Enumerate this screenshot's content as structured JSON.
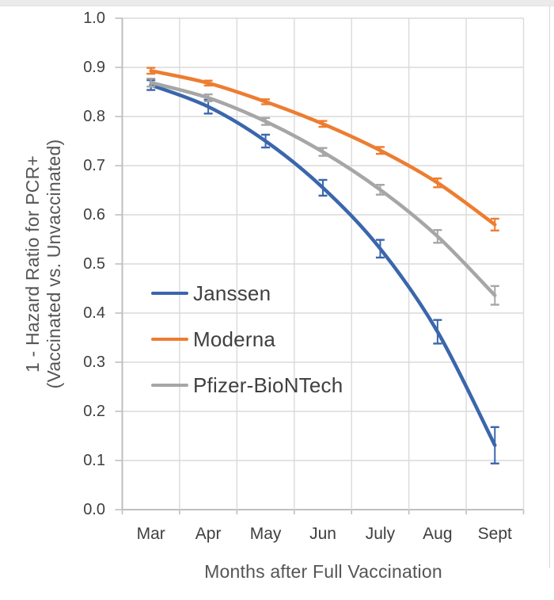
{
  "chart_data": {
    "type": "line",
    "title": "",
    "categories": [
      "Mar",
      "Apr",
      "May",
      "Jun",
      "July",
      "Aug",
      "Sept"
    ],
    "xlabel": "Months after Full Vaccination",
    "ylabel_line1": "1 - Hazard Ratio for PCR+",
    "ylabel_line2": "(Vaccinated vs. Unvaccinated)",
    "ylim": [
      0.0,
      1.0
    ],
    "ytick_step": 0.1,
    "ytick_labels": [
      "0.0",
      "0.1",
      "0.2",
      "0.3",
      "0.4",
      "0.5",
      "0.6",
      "0.7",
      "0.8",
      "0.9",
      "1.0"
    ],
    "grid": true,
    "line_style": "smooth",
    "error_bars": true,
    "legend_position": "inside-middle-left",
    "series": [
      {
        "name": "Janssen",
        "color": "#3A66AC",
        "values": [
          0.864,
          0.82,
          0.75,
          0.655,
          0.531,
          0.362,
          0.131
        ],
        "errors": [
          0.01,
          0.014,
          0.013,
          0.016,
          0.018,
          0.024,
          0.037
        ]
      },
      {
        "name": "Moderna",
        "color": "#ED7D31",
        "values": [
          0.893,
          0.868,
          0.83,
          0.785,
          0.731,
          0.665,
          0.58
        ],
        "errors": [
          0.006,
          0.005,
          0.005,
          0.006,
          0.007,
          0.009,
          0.012
        ]
      },
      {
        "name": "Pfizer-BioNTech",
        "color": "#A6A6A6",
        "values": [
          0.869,
          0.838,
          0.79,
          0.728,
          0.651,
          0.556,
          0.436
        ],
        "errors": [
          0.008,
          0.007,
          0.007,
          0.008,
          0.01,
          0.013,
          0.019
        ]
      }
    ],
    "colors": {
      "gridline": "#DADADA",
      "axis_line": "#BFBFBF",
      "tick_text": "#3F3F3F",
      "axis_title_text": "#555555",
      "legend_text": "#404040",
      "background": "#FFFFFF"
    }
  }
}
